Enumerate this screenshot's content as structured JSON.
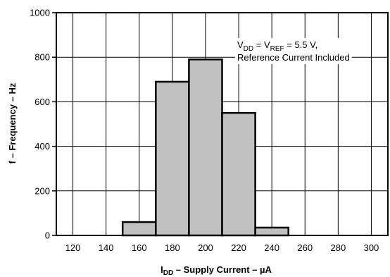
{
  "chart_data": {
    "type": "bar",
    "x_tick_labels": [
      "120",
      "140",
      "160",
      "180",
      "200",
      "220",
      "240",
      "260",
      "280",
      "300"
    ],
    "y_tick_labels": [
      "0",
      "200",
      "400",
      "600",
      "800",
      "1000"
    ],
    "bins": [
      {
        "x_start": 150,
        "x_end": 170,
        "value": 60
      },
      {
        "x_start": 170,
        "x_end": 190,
        "value": 690
      },
      {
        "x_start": 190,
        "x_end": 210,
        "value": 790
      },
      {
        "x_start": 210,
        "x_end": 230,
        "value": 550
      },
      {
        "x_start": 230,
        "x_end": 250,
        "value": 35
      }
    ],
    "xlim": [
      110,
      310
    ],
    "ylim": [
      0,
      1000
    ],
    "grid": true,
    "ylabel": "f – Frequency – Hz",
    "xlabel": {
      "main": "I",
      "sub": "DD",
      "rest": " – Supply Current – µA"
    },
    "annotation": {
      "line1_a": "V",
      "line1_a_sub": "DD",
      "line1_b": " = V",
      "line1_b_sub": "REF",
      "line1_c": " = 5.5 V,",
      "line2": "Reference Current Included"
    },
    "colors": {
      "bar_fill": "#c0c0c0",
      "lines": "#000000"
    }
  }
}
